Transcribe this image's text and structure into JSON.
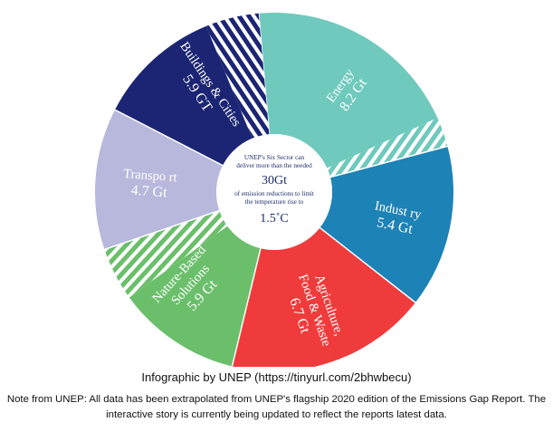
{
  "chart_data": {
    "type": "pie",
    "style": "donut",
    "sectors": [
      {
        "label": "Energy",
        "label_lines": [
          "Energy"
        ],
        "value": 8.2,
        "value_label": "8.2 Gt",
        "color": "#6fc9bd",
        "hatched_share": 0.12
      },
      {
        "label": "Industry",
        "label_lines": [
          "Indust ry"
        ],
        "value": 5.4,
        "value_label": "5.4 Gt",
        "color": "#1d82b5",
        "hatched_share": 0
      },
      {
        "label": "Agriculture, Food & Waste",
        "label_lines": [
          "Agriculture,",
          "Food & Waste"
        ],
        "value": 6.7,
        "value_label": "6.7 Gt",
        "color": "#ef3b3b",
        "hatched_share": 0
      },
      {
        "label": "Nature-Based Solutions",
        "label_lines": [
          "Nature-Based",
          "Solutions"
        ],
        "value": 5.9,
        "value_label": "5.9 Gt",
        "color": "#6bbf6b",
        "hatched_share": 0.3
      },
      {
        "label": "Transport",
        "label_lines": [
          "Transpo rt"
        ],
        "value": 4.7,
        "value_label": "4.7 Gt",
        "color": "#b7b8dc",
        "hatched_share": 0
      },
      {
        "label": "Buildings & Cities",
        "label_lines": [
          "Buildings & Cities"
        ],
        "value": 5.9,
        "value_label": "5.9 GT",
        "color": "#1c2573",
        "hatched_share": 0.3
      }
    ],
    "center": {
      "line1": "UNEP's Six Sector can",
      "line2": "deliver more than the needed",
      "total": "30Gt",
      "line3": "of emission reductions to limit",
      "line4": "the temperature rise to",
      "target": "1.5˚C"
    }
  },
  "footer": {
    "credit": "Infographic by UNEP (https://tinyurl.com/2bhwbecu)",
    "note": "Note from UNEP: All data has been extrapolated from UNEP's flagship 2020 edition of the Emissions Gap Report. The interactive story is currently being updated to reflect the reports latest data."
  }
}
